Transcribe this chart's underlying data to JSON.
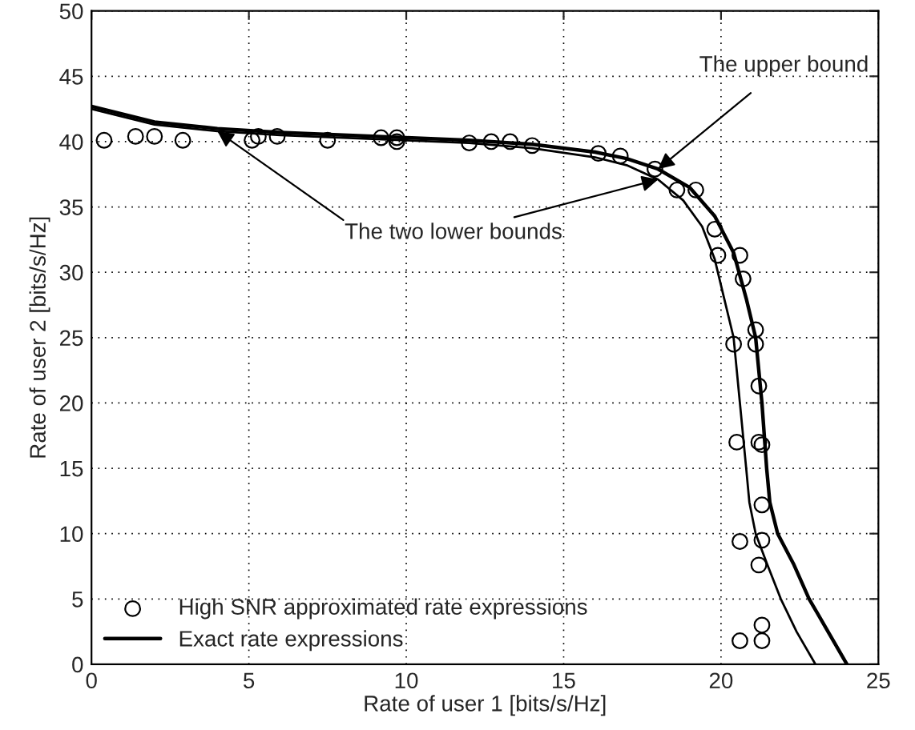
{
  "chart_data": {
    "type": "line",
    "xlabel": "Rate of user 1 [bits/s/Hz]",
    "ylabel": "Rate of user 2 [bits/s/Hz]",
    "xlim": [
      0,
      25
    ],
    "ylim": [
      0,
      50
    ],
    "xticks": [
      0,
      5,
      10,
      15,
      20,
      25
    ],
    "yticks": [
      0,
      5,
      10,
      15,
      20,
      25,
      30,
      35,
      40,
      45,
      50
    ],
    "grid": true,
    "legend": "bottom left",
    "series": [
      {
        "type": "scatter",
        "name": "High SNR approximated rate expressions",
        "color": "#000000",
        "marker": "circle",
        "x": [
          0.4,
          1.4,
          2.0,
          2.9,
          5.1,
          5.3,
          5.9,
          7.5,
          9.2,
          9.7,
          9.7,
          12.0,
          12.7,
          13.3,
          14.0,
          16.1,
          16.8,
          17.9,
          18.6,
          19.2,
          19.8,
          19.9,
          20.6,
          20.7,
          20.4,
          21.1,
          21.1,
          21.2,
          20.5,
          21.2,
          21.3,
          21.3,
          20.6,
          21.3,
          21.2,
          21.3,
          20.6,
          21.3
        ],
        "values": [
          40.1,
          40.4,
          40.4,
          40.1,
          40.1,
          40.4,
          40.4,
          40.1,
          40.3,
          40.3,
          40.0,
          39.9,
          40.0,
          40.0,
          39.7,
          39.1,
          38.9,
          37.9,
          36.3,
          36.3,
          33.3,
          31.3,
          31.3,
          29.5,
          24.5,
          25.6,
          24.5,
          21.3,
          17.0,
          17.0,
          16.8,
          12.2,
          9.4,
          9.5,
          7.6,
          3.0,
          1.8,
          1.8
        ]
      },
      {
        "name": "Exact rate expressions",
        "color": "#000000",
        "x": [
          0,
          2,
          4,
          6,
          8,
          10,
          12,
          14,
          16,
          17,
          18,
          19,
          19.8,
          20.4,
          20.8,
          21.1,
          21.3,
          21.45,
          21.55,
          21.8,
          22.3,
          22.8,
          23.4,
          24.0
        ],
        "values": [
          42.7,
          41.5,
          41.0,
          40.7,
          40.5,
          40.3,
          40.1,
          39.8,
          39.2,
          38.7,
          37.9,
          36.5,
          34.3,
          31.5,
          28.0,
          25.0,
          20.0,
          15.0,
          12.4,
          10.0,
          7.7,
          5.0,
          2.5,
          0
        ]
      },
      {
        "color": "#000000",
        "x": [
          0,
          2,
          4,
          6,
          8,
          10,
          12,
          14,
          16,
          17,
          18,
          18.8,
          19.4,
          19.8,
          20.1,
          20.4,
          20.6,
          20.8,
          20.9,
          21.1,
          21.46,
          21.9,
          22.4,
          23.0
        ],
        "values": [
          42.5,
          41.3,
          40.8,
          40.5,
          40.3,
          40.1,
          39.9,
          39.5,
          38.8,
          38.2,
          37.1,
          35.5,
          33.5,
          31.0,
          28.0,
          25.0,
          20.0,
          15.0,
          12.4,
          10.0,
          7.7,
          5.0,
          2.5,
          0
        ]
      }
    ],
    "annotations": [
      {
        "text": "The upper bound",
        "x": 18,
        "y": 37.9
      },
      {
        "text": "The two lower bounds",
        "x": 18,
        "y": 37.1
      }
    ]
  }
}
